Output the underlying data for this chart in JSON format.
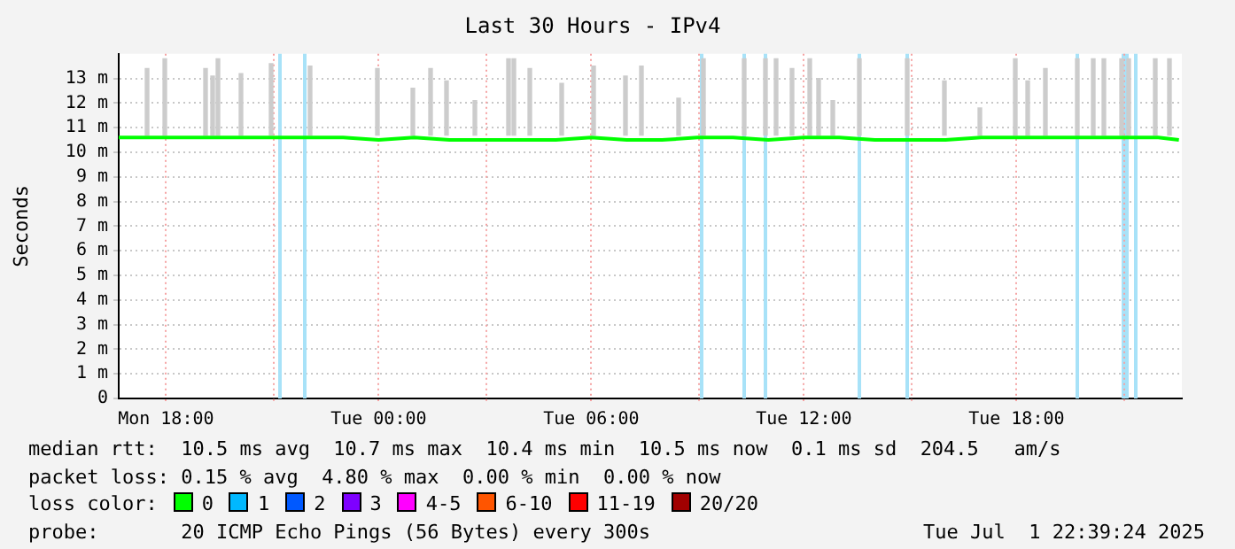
{
  "chart_data": {
    "type": "line",
    "title": "Last 30 Hours - IPv4",
    "ylabel": "Seconds",
    "xlim": [
      "2025-06-30T16:40",
      "2025-07-01T22:40"
    ],
    "xticks": [
      {
        "value": "2025-06-30T18:00",
        "label": "Mon 18:00"
      },
      {
        "value": "2025-06-30T21:00",
        "label": null
      },
      {
        "value": "2025-07-01T00:00",
        "label": "Tue 00:00"
      },
      {
        "value": "2025-07-01T03:00",
        "label": null
      },
      {
        "value": "2025-07-01T06:00",
        "label": "Tue 06:00"
      },
      {
        "value": "2025-07-01T09:00",
        "label": null
      },
      {
        "value": "2025-07-01T12:00",
        "label": "Tue 12:00"
      },
      {
        "value": "2025-07-01T15:00",
        "label": null
      },
      {
        "value": "2025-07-01T18:00",
        "label": "Tue 18:00"
      },
      {
        "value": "2025-07-01T21:00",
        "label": null
      }
    ],
    "ylim": [
      0,
      14
    ],
    "yticks": [
      0,
      {
        "value": 1,
        "label": "1 m"
      },
      {
        "value": 2,
        "label": "2 m"
      },
      {
        "value": 3,
        "label": "3 m"
      },
      {
        "value": 4,
        "label": "4 m"
      },
      {
        "value": 5,
        "label": "5 m"
      },
      {
        "value": 6,
        "label": "6 m"
      },
      {
        "value": 7,
        "label": "7 m"
      },
      {
        "value": 8,
        "label": "8 m"
      },
      {
        "value": 9,
        "label": "9 m"
      },
      {
        "value": 10,
        "label": "10 m"
      },
      {
        "value": 11,
        "label": "11 m"
      },
      {
        "value": 12,
        "label": "12 m"
      },
      {
        "value": 13,
        "label": "13 m"
      }
    ],
    "grid": true,
    "legend": "bottom",
    "marker": "none",
    "line_style": "solid",
    "series": [
      {
        "type": "bar",
        "color": "#cccccc",
        "x": [
          "2025-06-30T17:28",
          "2025-06-30T17:58",
          "2025-06-30T19:07",
          "2025-06-30T19:19",
          "2025-06-30T19:28",
          "2025-06-30T20:07",
          "2025-06-30T20:58",
          "2025-06-30T22:04",
          "2025-06-30T23:58",
          "2025-07-01T00:58",
          "2025-07-01T01:28",
          "2025-07-01T01:55",
          "2025-07-01T02:43",
          "2025-07-01T03:40",
          "2025-07-01T03:49",
          "2025-07-01T04:16",
          "2025-07-01T05:10",
          "2025-07-01T06:04",
          "2025-07-01T06:58",
          "2025-07-01T07:25",
          "2025-07-01T08:28",
          "2025-07-01T09:10",
          "2025-07-01T10:19",
          "2025-07-01T10:55",
          "2025-07-01T11:13",
          "2025-07-01T11:40",
          "2025-07-01T12:10",
          "2025-07-01T12:25",
          "2025-07-01T12:49",
          "2025-07-01T13:34",
          "2025-07-01T14:55",
          "2025-07-01T15:58",
          "2025-07-01T16:58",
          "2025-07-01T17:58",
          "2025-07-01T18:19",
          "2025-07-01T18:49",
          "2025-07-01T19:43",
          "2025-07-01T20:10",
          "2025-07-01T20:28",
          "2025-07-01T20:58",
          "2025-07-01T21:10",
          "2025-07-01T21:55",
          "2025-07-01T22:19"
        ],
        "base": [
          10.7,
          10.7,
          10.7,
          10.7,
          10.7,
          10.7,
          10.7,
          10.7,
          10.7,
          10.7,
          10.7,
          10.7,
          10.7,
          10.7,
          10.7,
          10.7,
          10.7,
          10.7,
          10.7,
          10.7,
          10.7,
          10.7,
          10.7,
          10.7,
          10.7,
          10.7,
          10.7,
          10.7,
          10.7,
          10.7,
          10.7,
          10.7,
          10.7,
          10.7,
          10.7,
          10.7,
          10.7,
          10.7,
          10.7,
          10.7,
          10.7,
          10.7,
          10.7
        ],
        "values": [
          2.7,
          3.1,
          2.7,
          2.4,
          3.1,
          2.5,
          2.9,
          2.8,
          2.7,
          1.9,
          2.7,
          2.2,
          1.4,
          3.1,
          3.1,
          2.7,
          2.1,
          2.8,
          2.4,
          2.8,
          1.5,
          3.1,
          3.1,
          3.1,
          3.1,
          2.7,
          3.1,
          2.3,
          1.4,
          3.1,
          3.1,
          2.2,
          1.1,
          3.1,
          2.2,
          2.7,
          3.1,
          3.1,
          3.1,
          3.1,
          3.1,
          3.1,
          3.1
        ]
      },
      {
        "name": "0",
        "color": "#00ff00",
        "x": [
          "2025-06-30T16:40",
          "2025-06-30T18:00",
          "2025-06-30T19:00",
          "2025-06-30T20:00",
          "2025-06-30T21:00",
          "2025-06-30T22:00",
          "2025-06-30T23:00",
          "2025-07-01T00:00",
          "2025-07-01T01:00",
          "2025-07-01T02:00",
          "2025-07-01T03:00",
          "2025-07-01T04:00",
          "2025-07-01T05:00",
          "2025-07-01T06:00",
          "2025-07-01T07:00",
          "2025-07-01T08:00",
          "2025-07-01T09:00",
          "2025-07-01T10:00",
          "2025-07-01T11:00",
          "2025-07-01T12:00",
          "2025-07-01T13:00",
          "2025-07-01T14:00",
          "2025-07-01T15:00",
          "2025-07-01T16:00",
          "2025-07-01T17:00",
          "2025-07-01T18:00",
          "2025-07-01T19:00",
          "2025-07-01T20:00",
          "2025-07-01T21:00",
          "2025-07-01T22:00",
          "2025-07-01T22:35"
        ],
        "values": [
          10.6,
          10.6,
          10.6,
          10.6,
          10.6,
          10.6,
          10.6,
          10.5,
          10.6,
          10.5,
          10.5,
          10.5,
          10.5,
          10.6,
          10.5,
          10.5,
          10.6,
          10.6,
          10.5,
          10.6,
          10.6,
          10.5,
          10.5,
          10.5,
          10.6,
          10.6,
          10.6,
          10.6,
          10.6,
          10.6,
          10.5
        ]
      },
      {
        "name": "1",
        "color": "#00b8ff"
      },
      {
        "name": "2",
        "color": "#0059ff"
      },
      {
        "name": "3",
        "color": "#7e00ff"
      },
      {
        "name": "4-5",
        "color": "#ff00ff"
      },
      {
        "name": "6-10",
        "color": "#ff5500"
      },
      {
        "name": "11-19",
        "color": "#ff0000"
      },
      {
        "name": "20/20",
        "color": "#a10000"
      }
    ],
    "bands": [
      {
        "axis": "x",
        "from": "2025-06-30T21:10",
        "to": "2025-06-30T21:16",
        "color": "#a8e2f8"
      },
      {
        "axis": "x",
        "from": "2025-06-30T21:52",
        "to": "2025-06-30T21:58",
        "color": "#a8e2f8"
      },
      {
        "axis": "x",
        "from": "2025-07-01T09:04",
        "to": "2025-07-01T09:10",
        "color": "#a8e2f8"
      },
      {
        "axis": "x",
        "from": "2025-07-01T10:16",
        "to": "2025-07-01T10:22",
        "color": "#a8e2f8"
      },
      {
        "axis": "x",
        "from": "2025-07-01T10:52",
        "to": "2025-07-01T10:58",
        "color": "#a8e2f8"
      },
      {
        "axis": "x",
        "from": "2025-07-01T13:31",
        "to": "2025-07-01T13:37",
        "color": "#a8e2f8"
      },
      {
        "axis": "x",
        "from": "2025-07-01T14:52",
        "to": "2025-07-01T14:58",
        "color": "#a8e2f8"
      },
      {
        "axis": "x",
        "from": "2025-07-01T19:40",
        "to": "2025-07-01T19:46",
        "color": "#a8e2f8"
      },
      {
        "axis": "x",
        "from": "2025-07-01T20:58",
        "to": "2025-07-01T21:10",
        "color": "#a8e2f8"
      },
      {
        "axis": "x",
        "from": "2025-07-01T21:19",
        "to": "2025-07-01T21:25",
        "color": "#a8e2f8"
      }
    ],
    "annotations": [
      "median rtt:  10.5 ms avg  10.7 ms max  10.4 ms min  10.5 ms now  0.1 ms sd  204.5   am/s",
      "packet loss: 0.15 % avg  4.80 % max  0.00 % min  0.00 % now",
      "loss color:",
      "probe:       20 ICMP Echo Pings (56 Bytes) every 300s",
      "Tue Jul  1 22:39:24 2025"
    ]
  }
}
